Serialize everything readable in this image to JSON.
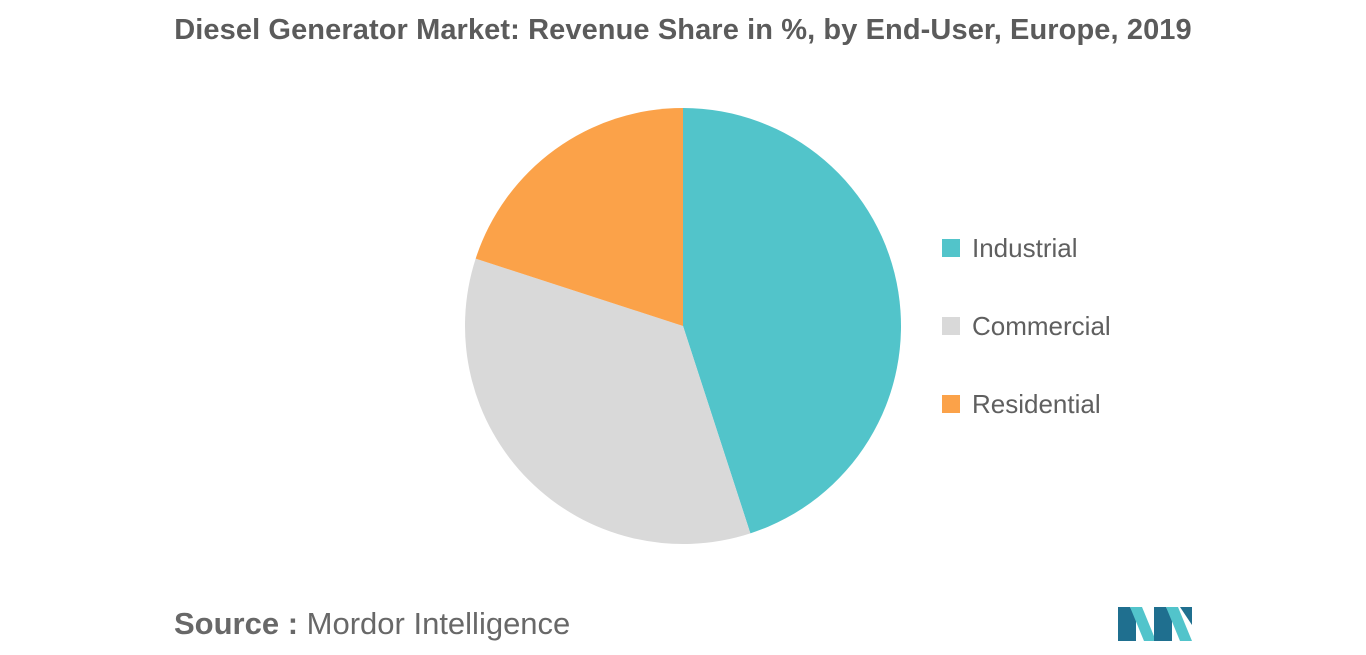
{
  "title": "Diesel Generator Market: Revenue Share in %, by End-User, Europe, 2019",
  "source": {
    "label": "Source :",
    "value": "Mordor Intelligence"
  },
  "logo": {
    "icon": "mordor-intelligence-logo-icon",
    "colors": [
      "#1f6f8f",
      "#52c4cb"
    ]
  },
  "chart_data": {
    "type": "pie",
    "title": "Diesel Generator Market: Revenue Share in %, by End-User, Europe, 2019",
    "legend_position": "right",
    "start_angle_deg": 0,
    "direction": "clockwise",
    "slices": [
      {
        "name": "Industrial",
        "value": 45,
        "color": "#52c4ca"
      },
      {
        "name": "Commercial",
        "value": 35,
        "color": "#d9d9d9"
      },
      {
        "name": "Residential",
        "value": 20,
        "color": "#fba249"
      }
    ]
  }
}
